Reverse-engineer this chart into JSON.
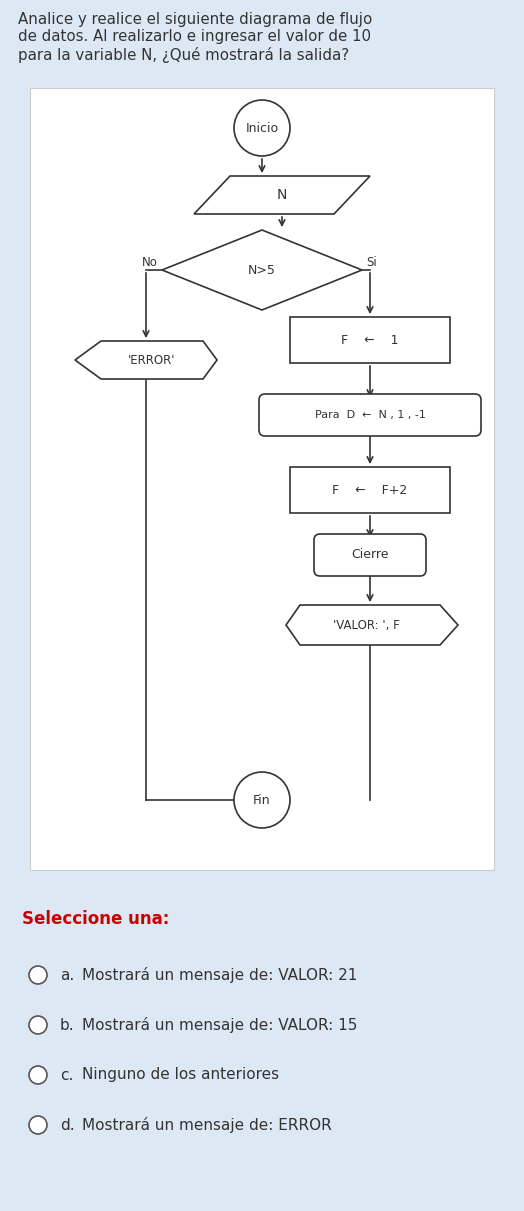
{
  "bg_color": "#dce9f5",
  "chart_bg": "#ffffff",
  "title_text": "Analice y realice el siguiente diagrama de flujo\nde datos. Al realizarlo e ingresar el valor de 10\npara la variable N, ¿Qué mostrará la salida?",
  "select_text": "Seleccione una:",
  "options": [
    [
      "a.",
      "Mostrará un mensaje de: VALOR: 21"
    ],
    [
      "b.",
      "Mostrará un mensaje de: VALOR: 15"
    ],
    [
      "c.",
      "Ninguno de los anteriores"
    ],
    [
      "d.",
      "Mostrará un mensaje de: ERROR"
    ]
  ],
  "fig_w": 5.24,
  "fig_h": 12.11,
  "dpi": 100
}
